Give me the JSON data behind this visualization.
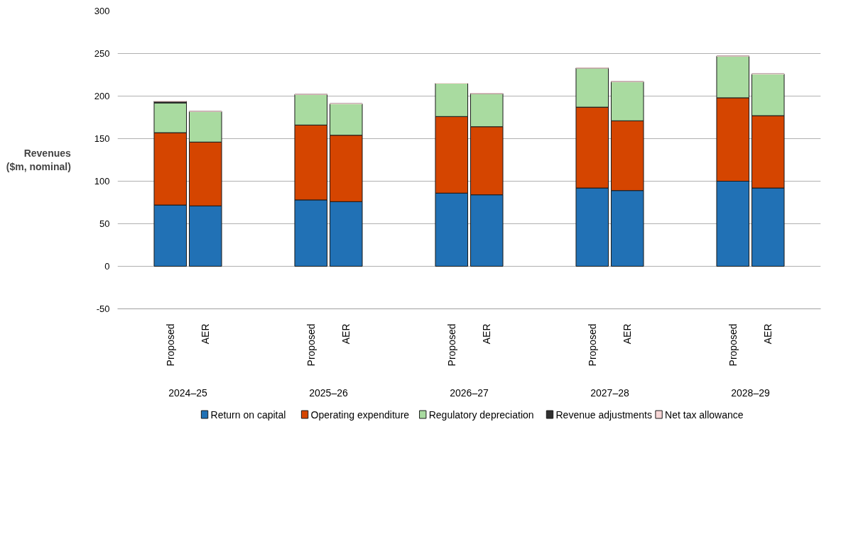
{
  "chart_data": {
    "type": "bar",
    "stacked": true,
    "ylabel": "Revenues ($m, nominal)",
    "categories": [
      null,
      "Proposed",
      "AER",
      null,
      null,
      "Proposed",
      "AER",
      null,
      null,
      "Proposed",
      "AER",
      null,
      null,
      "Proposed",
      "AER",
      null,
      null,
      "Proposed",
      "AER",
      null
    ],
    "annotations": [
      "2024–25",
      "2025–26",
      "2026–27",
      "2027–28",
      "2028–29"
    ],
    "series": [
      {
        "name": "Return on capital",
        "color": "#2171b5",
        "values": [
          null,
          72,
          71,
          null,
          null,
          78,
          76,
          null,
          null,
          86,
          84,
          null,
          null,
          92,
          89,
          null,
          null,
          100,
          92,
          null
        ]
      },
      {
        "name": "Operating expenditure",
        "color": "#d54500",
        "values": [
          null,
          85,
          75,
          null,
          null,
          88,
          78,
          null,
          null,
          90,
          80,
          null,
          null,
          95,
          82,
          null,
          null,
          98,
          85,
          null
        ]
      },
      {
        "name": "Regulatory depreciation",
        "color": "#a9dba0",
        "values": [
          null,
          35,
          36,
          null,
          null,
          36,
          37,
          null,
          null,
          39,
          39,
          null,
          null,
          46,
          46,
          null,
          null,
          49,
          49,
          null
        ]
      },
      {
        "name": "Revenue adjustments",
        "color": "#303030",
        "values": [
          null,
          2,
          0,
          null,
          null,
          0,
          0,
          null,
          null,
          0,
          0,
          null,
          null,
          0,
          0,
          null,
          null,
          0,
          0,
          null
        ]
      },
      {
        "name": "Net tax allowance",
        "color": "#f8d7d7",
        "values": [
          null,
          0,
          0,
          null,
          null,
          0,
          0,
          null,
          null,
          0,
          0,
          null,
          null,
          0,
          0,
          null,
          null,
          0,
          0,
          null
        ]
      }
    ],
    "ylim": [
      -50,
      300
    ],
    "yticks": [
      -50,
      0,
      50,
      100,
      150,
      200,
      250,
      300
    ],
    "grid": "y",
    "legend": "bottom"
  }
}
